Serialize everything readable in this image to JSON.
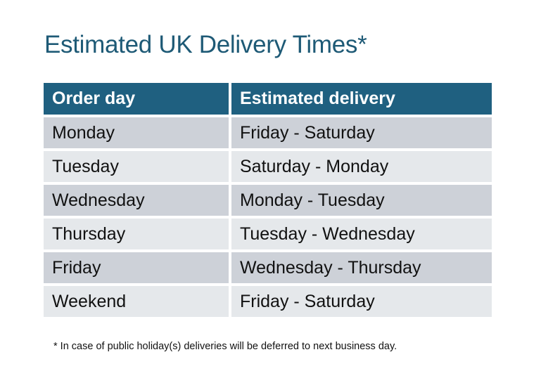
{
  "title": "Estimated UK Delivery Times*",
  "table": {
    "headers": [
      "Order day",
      "Estimated delivery"
    ],
    "rows": [
      [
        "Monday",
        "Friday - Saturday"
      ],
      [
        "Tuesday",
        "Saturday - Monday"
      ],
      [
        "Wednesday",
        "Monday - Tuesday"
      ],
      [
        "Thursday",
        "Tuesday - Wednesday"
      ],
      [
        "Friday",
        "Wednesday - Thursday"
      ],
      [
        "Weekend",
        "Friday - Saturday"
      ]
    ]
  },
  "footnote": "* In case of public holiday(s) deliveries will be deferred to next business day.",
  "colors": {
    "header": "#1f6080",
    "row_dark": "#cdd1d8",
    "row_light": "#e5e8eb",
    "title": "#1e5a76"
  }
}
